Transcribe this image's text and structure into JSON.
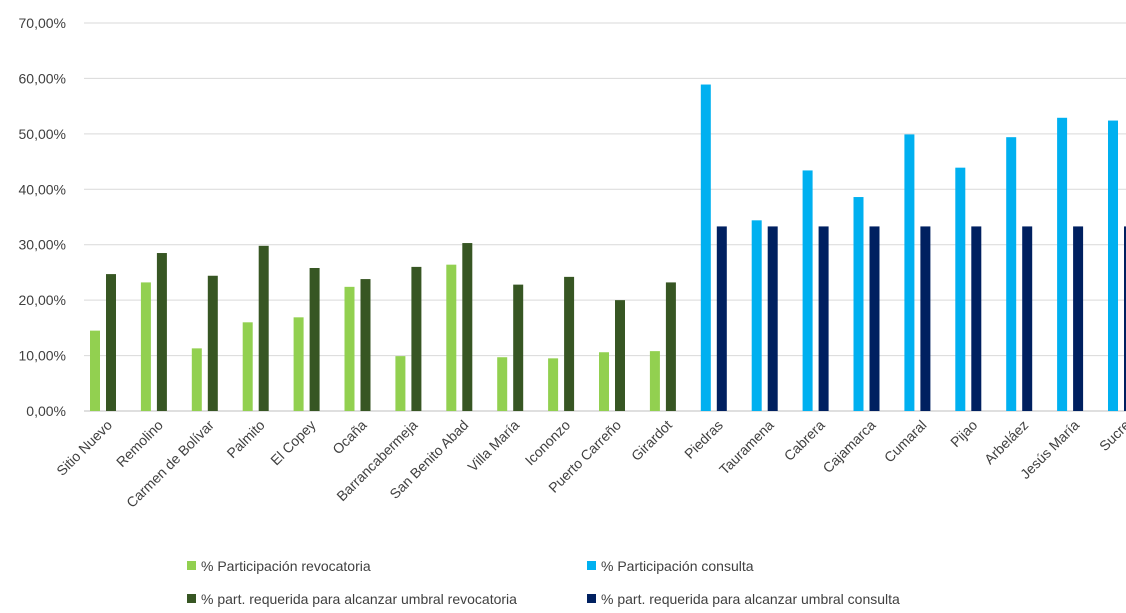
{
  "chart_data": {
    "type": "bar",
    "title": "",
    "xlabel": "",
    "ylabel": "",
    "ylim": [
      0,
      70
    ],
    "y_ticks": [
      "0,00%",
      "10,00%",
      "20,00%",
      "30,00%",
      "40,00%",
      "50,00%",
      "60,00%",
      "70,00%"
    ],
    "grid": true,
    "legend_position": "bottom",
    "categories": [
      "Sitio Nuevo",
      "Remolino",
      "Carmen de Bolívar",
      "Palmito",
      "El Copey",
      "Ocaña",
      "Barrancabermeja",
      "San Benito Abad",
      "Villa María",
      "Icononzo",
      "Puerto Carreño",
      "Girardot",
      "Piedras",
      "Tauramena",
      "Cabrera",
      "Cajamarca",
      "Cumaral",
      "Pijao",
      "Arbeláez",
      "Jesús María",
      "Sucre"
    ],
    "series": [
      {
        "name": "% Participación revocatoria",
        "color": "#92d050",
        "values": [
          14.5,
          23.2,
          11.3,
          16.0,
          16.9,
          22.4,
          9.9,
          26.4,
          9.7,
          9.5,
          10.6,
          10.8,
          null,
          null,
          null,
          null,
          null,
          null,
          null,
          null,
          null
        ]
      },
      {
        "name": "% part. requerida para alcanzar umbral revocatoria",
        "color": "#375623",
        "values": [
          24.7,
          28.5,
          24.4,
          29.8,
          25.8,
          23.8,
          26.0,
          30.3,
          22.8,
          24.2,
          20.0,
          23.2,
          null,
          null,
          null,
          null,
          null,
          null,
          null,
          null,
          null
        ]
      },
      {
        "name": "% Participación consulta",
        "color": "#00b0f0",
        "values": [
          null,
          null,
          null,
          null,
          null,
          null,
          null,
          null,
          null,
          null,
          null,
          null,
          58.9,
          34.4,
          43.4,
          38.6,
          49.9,
          43.9,
          49.4,
          52.9,
          52.4
        ]
      },
      {
        "name": "% part. requerida para alcanzar umbral consulta",
        "color": "#002060",
        "values": [
          null,
          null,
          null,
          null,
          null,
          null,
          null,
          null,
          null,
          null,
          null,
          null,
          33.3,
          33.3,
          33.3,
          33.3,
          33.3,
          33.3,
          33.3,
          33.3,
          33.3
        ]
      }
    ]
  }
}
